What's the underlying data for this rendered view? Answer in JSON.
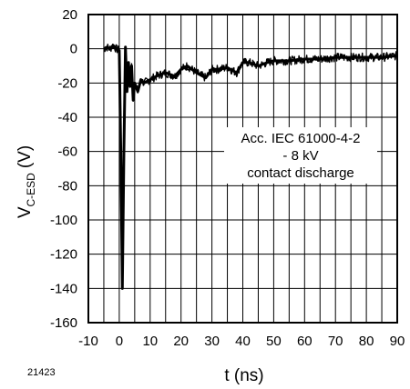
{
  "figure_id": "21423",
  "chart_data": {
    "type": "line",
    "xlabel": "t (ns)",
    "ylabel_main": "V",
    "ylabel_sub": "C-ESD",
    "ylabel_unit": "(V)",
    "xlim": [
      -10,
      90
    ],
    "ylim": [
      -160,
      20
    ],
    "x_ticks": [
      -10,
      0,
      10,
      20,
      30,
      40,
      50,
      60,
      70,
      80,
      90
    ],
    "y_ticks": [
      20,
      0,
      -20,
      -40,
      -60,
      -80,
      -100,
      -120,
      -140,
      -160
    ],
    "x_tick_labels": [
      "-10",
      "0",
      "10",
      "20",
      "30",
      "40",
      "50",
      "60",
      "70",
      "80",
      "90"
    ],
    "y_tick_labels": [
      "20",
      "0",
      "-20",
      "-40",
      "-60",
      "-80",
      "-100",
      "-120",
      "-140",
      "-160"
    ],
    "x_minor_step": 5,
    "grid": true,
    "annotation_lines": [
      "Acc. IEC 61000-4-2",
      "- 8 kV",
      "contact discharge"
    ],
    "series": [
      {
        "color": "#000000",
        "noise_band": 5,
        "x": [
          -5,
          -4,
          -3,
          -2,
          -1,
          0,
          0.5,
          1.0,
          1.5,
          2.0,
          2.5,
          3.0,
          3.5,
          4.0,
          4.5,
          5,
          6,
          7,
          8,
          10,
          12,
          15,
          18,
          20,
          22,
          25,
          28,
          30,
          32,
          35,
          38,
          40,
          42,
          45,
          48,
          50,
          55,
          60,
          65,
          70,
          75,
          80,
          85,
          90
        ],
        "y": [
          0,
          1,
          0,
          2,
          0,
          -1,
          -60,
          -140,
          -60,
          1,
          -25,
          -8,
          -22,
          -10,
          -30,
          -20,
          -25,
          -18,
          -20,
          -18,
          -16,
          -14,
          -16,
          -12,
          -10,
          -14,
          -17,
          -12,
          -12,
          -11,
          -14,
          -8,
          -8,
          -10,
          -8,
          -7,
          -7,
          -6,
          -6,
          -5,
          -5,
          -5,
          -5,
          -4
        ]
      }
    ]
  }
}
